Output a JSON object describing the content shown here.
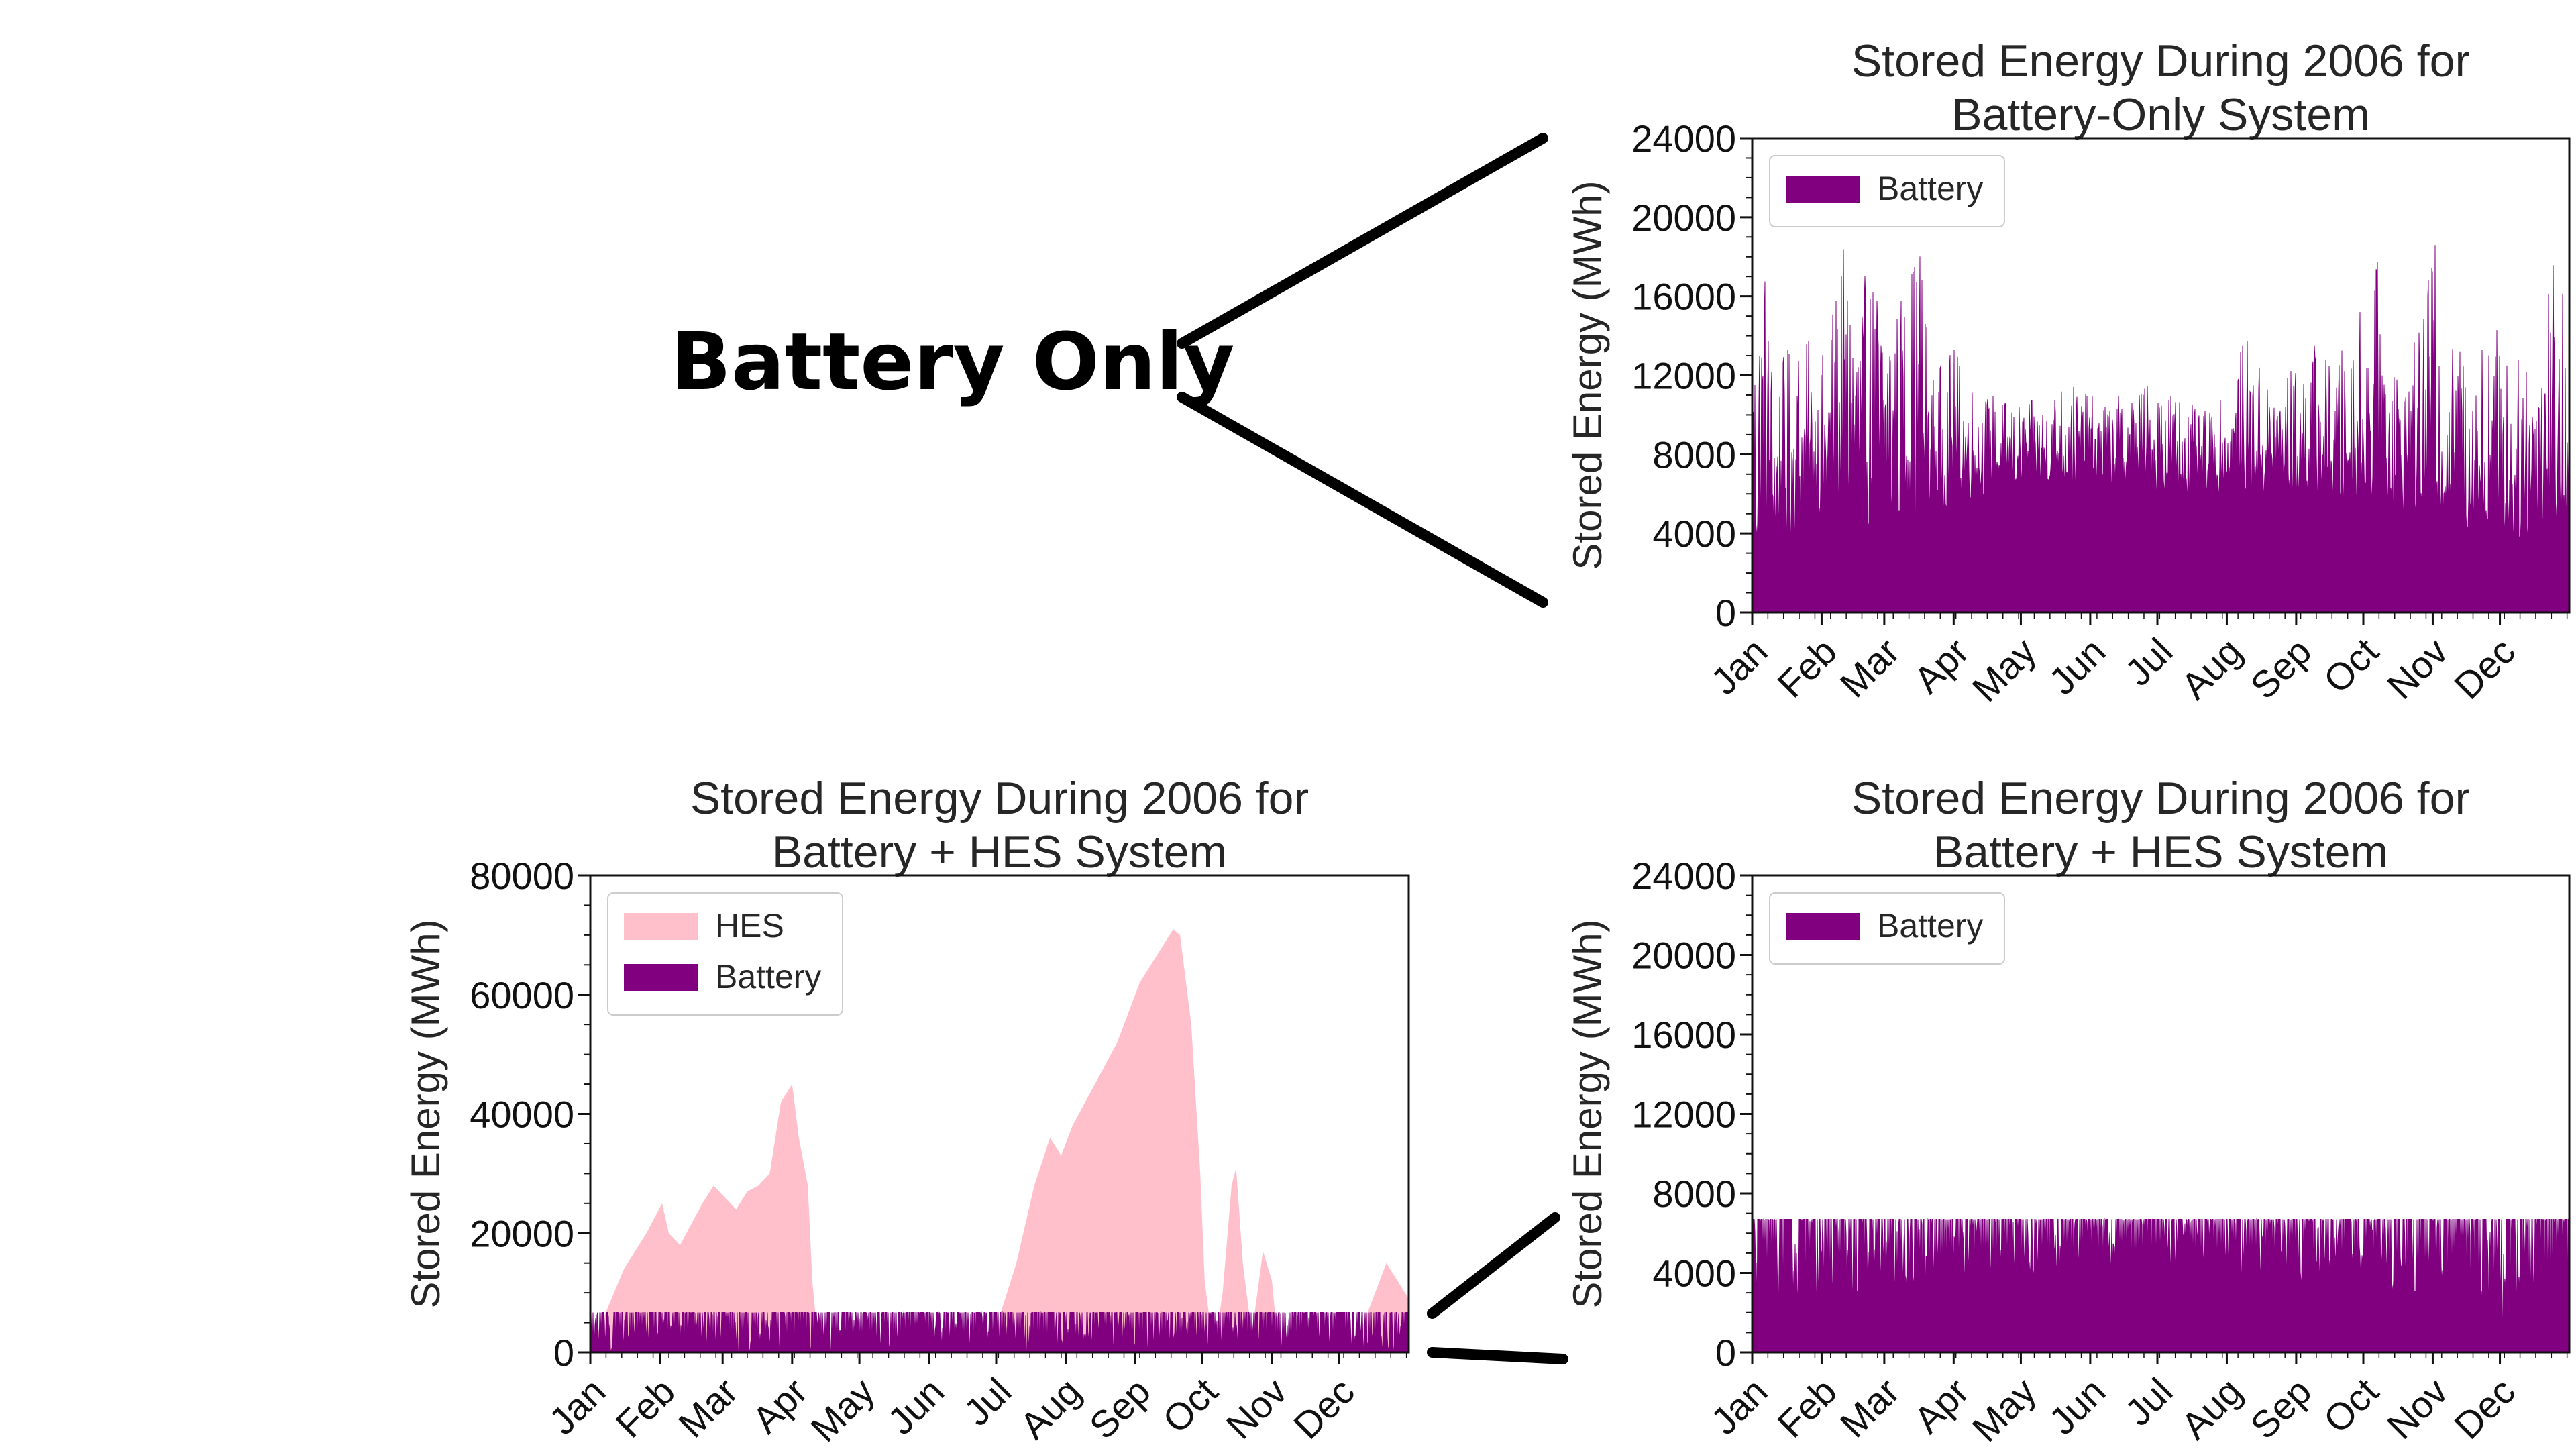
{
  "annotation": {
    "label": "Battery Only",
    "connector_color": "#000000"
  },
  "colors": {
    "battery": "#800080",
    "hes": "#ffc0cb",
    "axis": "#111111"
  },
  "chart_data": [
    {
      "id": "top-right",
      "type": "area",
      "title": [
        "Stored Energy During 2006 for",
        "Battery-Only System"
      ],
      "ylabel": "Stored Energy (MWh)",
      "xlabel": "",
      "ylim": [
        0,
        24000
      ],
      "yticks": [
        "0",
        "4000",
        "8000",
        "12000",
        "16000",
        "20000",
        "24000"
      ],
      "xticks": [
        "Jan",
        "Feb",
        "Mar",
        "Apr",
        "May",
        "Jun",
        "Jul",
        "Aug",
        "Sep",
        "Oct",
        "Nov",
        "Dec"
      ],
      "legend_position": "upper-left",
      "series": [
        {
          "name": "Battery",
          "color": "#800080",
          "envelope": [
            [
              0,
              14000
            ],
            [
              5,
              19500
            ],
            [
              10,
              12000
            ],
            [
              20,
              14500
            ],
            [
              31,
              13000
            ],
            [
              40,
              18500
            ],
            [
              50,
              17000
            ],
            [
              59,
              18000
            ],
            [
              65,
              16000
            ],
            [
              75,
              19800
            ],
            [
              80,
              12000
            ],
            [
              90,
              13500
            ],
            [
              100,
              11500
            ],
            [
              110,
              11000
            ],
            [
              120,
              10500
            ],
            [
              130,
              11000
            ],
            [
              140,
              12000
            ],
            [
              150,
              11000
            ],
            [
              160,
              10800
            ],
            [
              170,
              11500
            ],
            [
              181,
              12000
            ],
            [
              190,
              11500
            ],
            [
              200,
              10000
            ],
            [
              212,
              11000
            ],
            [
              220,
              14000
            ],
            [
              230,
              12000
            ],
            [
              243,
              12500
            ],
            [
              250,
              14000
            ],
            [
              260,
              12500
            ],
            [
              273,
              16000
            ],
            [
              280,
              18000
            ],
            [
              290,
              12000
            ],
            [
              300,
              15000
            ],
            [
              304,
              19800
            ],
            [
              310,
              13500
            ],
            [
              320,
              14000
            ],
            [
              334,
              15000
            ],
            [
              340,
              12000
            ],
            [
              350,
              16000
            ],
            [
              358,
              19800
            ],
            [
              365,
              14000
            ]
          ],
          "floor": [
            [
              0,
              3000
            ],
            [
              31,
              4500
            ],
            [
              59,
              4000
            ],
            [
              90,
              5500
            ],
            [
              120,
              6500
            ],
            [
              150,
              6500
            ],
            [
              181,
              6000
            ],
            [
              212,
              6000
            ],
            [
              243,
              6000
            ],
            [
              273,
              5500
            ],
            [
              304,
              5000
            ],
            [
              334,
              3500
            ],
            [
              365,
              4000
            ]
          ]
        }
      ]
    },
    {
      "id": "bottom-left",
      "type": "area",
      "title": [
        "Stored Energy During 2006 for",
        "Battery + HES System"
      ],
      "ylabel": "Stored Energy (MWh)",
      "xlabel": "",
      "ylim": [
        0,
        80000
      ],
      "yticks": [
        "0",
        "20000",
        "40000",
        "60000",
        "80000"
      ],
      "xticks": [
        "Jan",
        "Feb",
        "Mar",
        "Apr",
        "May",
        "Jun",
        "Jul",
        "Aug",
        "Sep",
        "Oct",
        "Nov",
        "Dec"
      ],
      "legend_position": "upper-left",
      "series": [
        {
          "name": "HES",
          "color": "#ffc0cb",
          "points": [
            [
              0,
              0
            ],
            [
              5,
              5000
            ],
            [
              15,
              14000
            ],
            [
              25,
              20000
            ],
            [
              32,
              25000
            ],
            [
              35,
              20000
            ],
            [
              40,
              18000
            ],
            [
              50,
              25000
            ],
            [
              55,
              28000
            ],
            [
              60,
              26000
            ],
            [
              65,
              24000
            ],
            [
              70,
              27000
            ],
            [
              75,
              28000
            ],
            [
              80,
              30000
            ],
            [
              85,
              42000
            ],
            [
              90,
              45000
            ],
            [
              93,
              36000
            ],
            [
              97,
              28000
            ],
            [
              99,
              12000
            ],
            [
              102,
              0
            ],
            [
              175,
              0
            ],
            [
              180,
              3000
            ],
            [
              190,
              15000
            ],
            [
              198,
              28000
            ],
            [
              205,
              36000
            ],
            [
              210,
              33000
            ],
            [
              215,
              38000
            ],
            [
              225,
              45000
            ],
            [
              235,
              52000
            ],
            [
              240,
              57000
            ],
            [
              245,
              62000
            ],
            [
              250,
              65000
            ],
            [
              255,
              68000
            ],
            [
              260,
              71000
            ],
            [
              263,
              70000
            ],
            [
              268,
              55000
            ],
            [
              272,
              30000
            ],
            [
              274,
              12000
            ],
            [
              278,
              0
            ],
            [
              282,
              10000
            ],
            [
              286,
              28000
            ],
            [
              288,
              31000
            ],
            [
              291,
              15000
            ],
            [
              295,
              3000
            ],
            [
              300,
              17000
            ],
            [
              304,
              12000
            ],
            [
              307,
              0
            ],
            [
              340,
              0
            ],
            [
              348,
              8000
            ],
            [
              355,
              15000
            ],
            [
              360,
              12000
            ],
            [
              365,
              9000
            ]
          ]
        },
        {
          "name": "Battery",
          "color": "#800080",
          "envelope": [
            [
              0,
              6700
            ],
            [
              365,
              6700
            ]
          ],
          "floor": [
            [
              0,
              0
            ],
            [
              365,
              0
            ]
          ]
        }
      ]
    },
    {
      "id": "bottom-right",
      "type": "area",
      "title": [
        "Stored Energy During 2006 for",
        "Battery + HES System"
      ],
      "ylabel": "Stored Energy (MWh)",
      "xlabel": "",
      "ylim": [
        0,
        24000
      ],
      "yticks": [
        "0",
        "4000",
        "8000",
        "12000",
        "16000",
        "20000",
        "24000"
      ],
      "xticks": [
        "Jan",
        "Feb",
        "Mar",
        "Apr",
        "May",
        "Jun",
        "Jul",
        "Aug",
        "Sep",
        "Oct",
        "Nov",
        "Dec"
      ],
      "legend_position": "upper-left",
      "series": [
        {
          "name": "Battery",
          "color": "#800080",
          "envelope": [
            [
              0,
              6700
            ],
            [
              365,
              6700
            ]
          ],
          "floor": [
            [
              0,
              1500
            ],
            [
              31,
              2500
            ],
            [
              59,
              2500
            ],
            [
              85,
              3000
            ],
            [
              100,
              3500
            ],
            [
              200,
              3800
            ],
            [
              270,
              3500
            ],
            [
              300,
              2500
            ],
            [
              334,
              1500
            ],
            [
              365,
              2500
            ]
          ]
        }
      ]
    }
  ]
}
